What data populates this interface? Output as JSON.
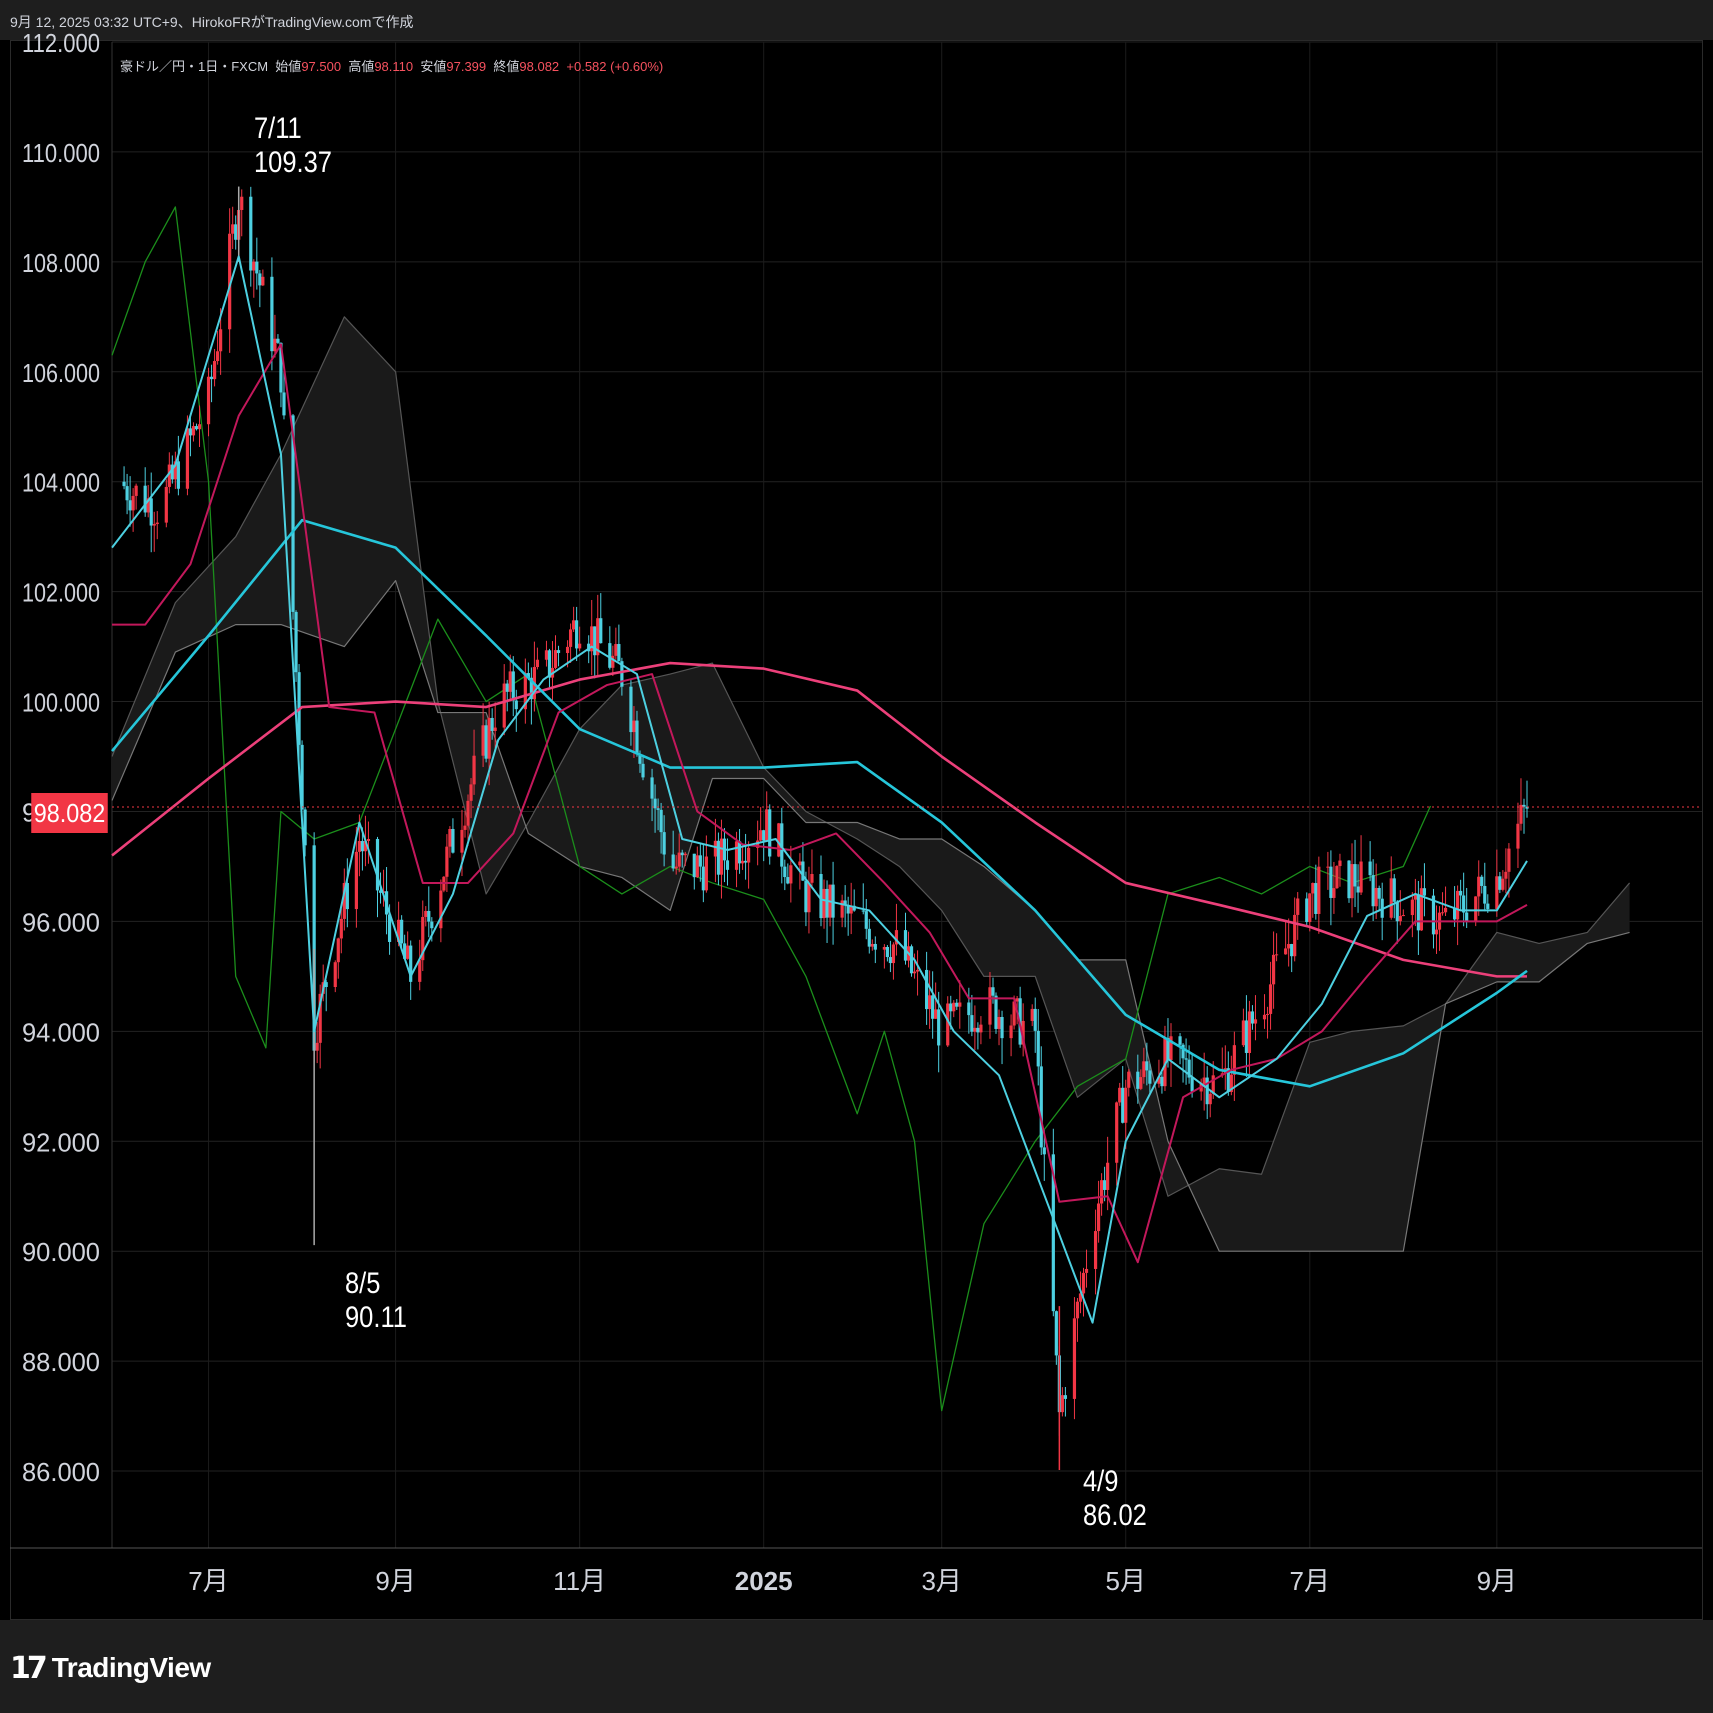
{
  "header": {
    "caption": "9月 12, 2025 03:32 UTC+9、HirokoFRがTradingView.comで作成"
  },
  "ohlc": {
    "symbol": "豪ドル／円・1日・FXCM",
    "open_label": "始値",
    "open": "97.500",
    "high_label": "高値",
    "high": "98.110",
    "low_label": "安値",
    "low": "97.399",
    "close_label": "終値",
    "close": "98.082",
    "change": "+0.582 (+0.60%)"
  },
  "price_badge": "98.082",
  "annotations": {
    "high": {
      "date": "7/11",
      "value": "109.37"
    },
    "low1": {
      "date": "8/5",
      "value": "90.11"
    },
    "low2": {
      "date": "4/9",
      "value": "86.02"
    }
  },
  "branding": {
    "logo_text": "TradingView"
  },
  "colors": {
    "up": "#f23645",
    "down": "#4dd0e1",
    "tenkan": "#4dd0e1",
    "kijun": "#c2185b",
    "sma200": "#ec407a",
    "sma75": "#26c6da",
    "chikou": "#1b8e1b",
    "cloud": "#2a2a2a"
  },
  "chart_data": {
    "type": "line",
    "symbol": "AUDJPY",
    "timeframe": "1D",
    "ylim": [
      84.6,
      112.0
    ],
    "y_ticks": [
      "112.000",
      "110.000",
      "108.000",
      "106.000",
      "104.000",
      "102.000",
      "100.000",
      "98.000",
      "96.000",
      "94.000",
      "92.000",
      "90.000",
      "88.000",
      "86.000"
    ],
    "x_ticks": [
      "7月",
      "9月",
      "11月",
      "2025",
      "3月",
      "5月",
      "7月",
      "9月"
    ],
    "grid": true,
    "series": [
      {
        "key": "close",
        "x": [
          "2024-06-01",
          "2024-06-15",
          "2024-07-01",
          "2024-07-11",
          "2024-07-25",
          "2024-08-05",
          "2024-08-20",
          "2024-09-06",
          "2024-09-20",
          "2024-10-05",
          "2024-10-20",
          "2024-11-01",
          "2024-11-15",
          "2024-12-01",
          "2024-12-15",
          "2025-01-01",
          "2025-01-15",
          "2025-02-01",
          "2025-02-15",
          "2025-03-01",
          "2025-03-15",
          "2025-04-01",
          "2025-04-09",
          "2025-04-20",
          "2025-05-01",
          "2025-05-15",
          "2025-06-01",
          "2025-06-15",
          "2025-07-01",
          "2025-07-15",
          "2025-08-01",
          "2025-08-15",
          "2025-09-01",
          "2025-09-11"
        ],
        "values": [
          104.0,
          103.5,
          105.5,
          109.2,
          106.0,
          94.0,
          97.5,
          95.0,
          97.5,
          100.0,
          100.5,
          101.5,
          100.5,
          97.0,
          97.0,
          97.8,
          96.5,
          96.0,
          95.5,
          94.0,
          94.5,
          94.0,
          87.0,
          90.5,
          93.0,
          93.5,
          93.0,
          94.5,
          96.5,
          96.8,
          96.3,
          96.0,
          96.8,
          98.08
        ]
      },
      {
        "key": "sma_short",
        "x": [
          "2024-05-30",
          "2024-07-01",
          "2024-08-01",
          "2024-09-01",
          "2024-10-01",
          "2024-11-01",
          "2024-12-01",
          "2025-01-01",
          "2025-02-01",
          "2025-03-01",
          "2025-04-01",
          "2025-05-01",
          "2025-06-01",
          "2025-07-01",
          "2025-08-01",
          "2025-09-01",
          "2025-09-11"
        ],
        "values": [
          99.1,
          101.2,
          103.3,
          102.8,
          101.2,
          99.5,
          98.8,
          98.8,
          98.9,
          97.8,
          96.2,
          94.3,
          93.3,
          93.0,
          93.6,
          94.7,
          95.1
        ]
      },
      {
        "key": "sma_long",
        "x": [
          "2024-05-30",
          "2024-07-01",
          "2024-08-01",
          "2024-09-01",
          "2024-10-01",
          "2024-11-01",
          "2024-12-01",
          "2025-01-01",
          "2025-02-01",
          "2025-03-01",
          "2025-04-01",
          "2025-05-01",
          "2025-06-01",
          "2025-07-01",
          "2025-08-01",
          "2025-09-01",
          "2025-09-11"
        ],
        "values": [
          97.2,
          98.6,
          99.9,
          100.0,
          99.9,
          100.4,
          100.7,
          100.6,
          100.2,
          99.0,
          97.8,
          96.7,
          96.3,
          95.9,
          95.3,
          95.0,
          95.0
        ]
      },
      {
        "key": "tenkan",
        "x": [
          "2024-05-30",
          "2024-06-20",
          "2024-07-11",
          "2024-07-25",
          "2024-08-05",
          "2024-08-20",
          "2024-09-06",
          "2024-09-20",
          "2024-10-05",
          "2024-10-20",
          "2024-11-05",
          "2024-11-20",
          "2024-12-05",
          "2024-12-20",
          "2025-01-05",
          "2025-01-20",
          "2025-02-05",
          "2025-02-20",
          "2025-03-05",
          "2025-03-20",
          "2025-04-09",
          "2025-04-20",
          "2025-05-01",
          "2025-05-15",
          "2025-06-01",
          "2025-06-20",
          "2025-07-05",
          "2025-07-20",
          "2025-08-05",
          "2025-08-20",
          "2025-09-01",
          "2025-09-11"
        ],
        "values": [
          102.8,
          104.3,
          108.1,
          104.5,
          94.0,
          97.8,
          95.0,
          96.5,
          99.3,
          100.4,
          101.0,
          100.5,
          97.5,
          97.3,
          97.5,
          96.4,
          96.2,
          95.3,
          94.0,
          93.2,
          90.3,
          88.7,
          92.0,
          93.5,
          92.8,
          93.5,
          94.5,
          96.1,
          96.5,
          96.2,
          96.2,
          97.1
        ]
      },
      {
        "key": "kijun",
        "x": [
          "2024-05-30",
          "2024-06-10",
          "2024-06-25",
          "2024-07-11",
          "2024-07-25",
          "2024-08-10",
          "2024-08-25",
          "2024-09-10",
          "2024-09-25",
          "2024-10-10",
          "2024-10-25",
          "2024-11-10",
          "2024-11-25",
          "2024-12-10",
          "2024-12-25",
          "2025-01-10",
          "2025-01-25",
          "2025-02-10",
          "2025-02-25",
          "2025-03-10",
          "2025-03-25",
          "2025-04-09",
          "2025-04-25",
          "2025-05-05",
          "2025-05-20",
          "2025-06-05",
          "2025-06-20",
          "2025-07-05",
          "2025-07-20",
          "2025-08-05",
          "2025-08-20",
          "2025-09-01",
          "2025-09-11"
        ],
        "values": [
          101.4,
          101.4,
          102.5,
          105.2,
          106.5,
          99.9,
          99.8,
          96.7,
          96.7,
          97.6,
          99.8,
          100.3,
          100.5,
          98.0,
          97.4,
          97.3,
          97.6,
          96.7,
          95.8,
          94.6,
          94.6,
          90.9,
          91.0,
          89.8,
          92.8,
          93.3,
          93.5,
          94.0,
          95.0,
          96.0,
          96.0,
          96.0,
          96.3
        ]
      },
      {
        "key": "chikou",
        "x": [
          "2024-05-30",
          "2024-06-10",
          "2024-06-20",
          "2024-07-01",
          "2024-07-10",
          "2024-07-20",
          "2024-07-25",
          "2024-08-05",
          "2024-08-20",
          "2024-09-01",
          "2024-09-15",
          "2024-10-01",
          "2024-10-15",
          "2024-11-01",
          "2024-11-15",
          "2024-12-01",
          "2024-12-15",
          "2025-01-01",
          "2025-01-15",
          "2025-02-01",
          "2025-02-10",
          "2025-02-20",
          "2025-03-01",
          "2025-03-15",
          "2025-04-01",
          "2025-04-15",
          "2025-05-01",
          "2025-05-15",
          "2025-06-01",
          "2025-06-15",
          "2025-07-01",
          "2025-07-15",
          "2025-08-01",
          "2025-08-10"
        ],
        "values": [
          106.3,
          108.0,
          109.0,
          104.0,
          95.0,
          93.7,
          98.0,
          97.5,
          97.8,
          99.5,
          101.5,
          100.0,
          100.5,
          97.0,
          96.5,
          97.0,
          96.7,
          96.4,
          95.0,
          92.5,
          94.0,
          92.0,
          87.1,
          90.5,
          92.0,
          93.0,
          93.5,
          96.5,
          96.8,
          96.5,
          97.0,
          96.7,
          97.0,
          98.1
        ]
      },
      {
        "key": "span_a",
        "x": [
          "2024-05-30",
          "2024-06-20",
          "2024-07-10",
          "2024-07-25",
          "2024-08-15",
          "2024-09-01",
          "2024-09-15",
          "2024-10-01",
          "2024-10-15",
          "2024-11-01",
          "2024-11-15",
          "2024-12-01",
          "2024-12-15",
          "2025-01-01",
          "2025-01-15",
          "2025-02-01",
          "2025-02-15",
          "2025-03-01",
          "2025-03-15",
          "2025-04-01",
          "2025-04-15",
          "2025-05-01",
          "2025-05-15",
          "2025-06-01",
          "2025-06-15",
          "2025-07-01",
          "2025-07-15",
          "2025-08-01",
          "2025-08-15",
          "2025-09-01",
          "2025-09-15",
          "2025-10-01",
          "2025-10-15"
        ],
        "values": [
          99.0,
          101.8,
          103.0,
          104.5,
          107.0,
          106.0,
          100.0,
          96.5,
          97.8,
          99.5,
          100.3,
          100.5,
          100.7,
          98.8,
          98.0,
          97.5,
          97.0,
          96.2,
          95.0,
          95.0,
          92.8,
          93.5,
          91.0,
          91.5,
          91.4,
          93.8,
          94.0,
          94.1,
          94.5,
          95.8,
          95.6,
          95.8,
          96.7
        ]
      },
      {
        "key": "span_b",
        "x": [
          "2024-05-30",
          "2024-06-20",
          "2024-07-10",
          "2024-07-25",
          "2024-08-15",
          "2024-09-01",
          "2024-09-15",
          "2024-10-01",
          "2024-10-15",
          "2024-11-01",
          "2024-11-15",
          "2024-12-01",
          "2024-12-15",
          "2025-01-01",
          "2025-01-15",
          "2025-02-01",
          "2025-02-15",
          "2025-03-01",
          "2025-03-15",
          "2025-04-01",
          "2025-04-15",
          "2025-05-01",
          "2025-05-15",
          "2025-06-01",
          "2025-06-15",
          "2025-07-01",
          "2025-07-15",
          "2025-08-01",
          "2025-08-15",
          "2025-09-01",
          "2025-09-15",
          "2025-10-01",
          "2025-10-15"
        ],
        "values": [
          98.2,
          100.9,
          101.4,
          101.4,
          101.0,
          102.2,
          99.8,
          99.8,
          97.6,
          97.0,
          96.8,
          96.2,
          98.6,
          98.6,
          97.8,
          97.8,
          97.5,
          97.5,
          97.0,
          96.2,
          95.3,
          95.3,
          92.0,
          90.0,
          90.0,
          90.0,
          90.0,
          90.0,
          94.5,
          94.9,
          94.9,
          95.6,
          95.8
        ]
      }
    ]
  }
}
